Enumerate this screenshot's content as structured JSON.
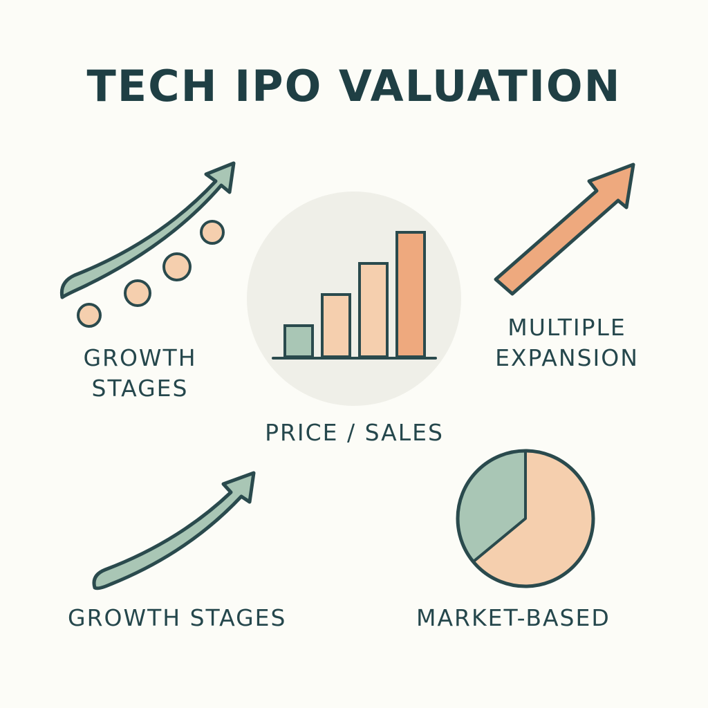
{
  "title": "TECH IPO VALUATION",
  "labels": {
    "growth_stages_top": [
      "GROWTH",
      "STAGES"
    ],
    "multiple_expansion": [
      "MULTIPLE",
      "EXPANSION"
    ],
    "price_sales": "PRICE / SALES",
    "growth_stages_bottom": "GROWTH STAGES",
    "market_based": "MARKET-BASED"
  },
  "colors": {
    "ink": "#2a4a4d",
    "sage": "#a9c6b5",
    "peach": "#f5cfae",
    "orange": "#eea97e",
    "circle_bg": "#efefe8"
  },
  "icons": [
    "growth-arrow-icon",
    "dots-icon",
    "bar-chart-icon",
    "expansion-arrow-icon",
    "pie-chart-icon"
  ],
  "chart_data": [
    {
      "type": "bar",
      "categories": [
        "",
        "",
        "",
        ""
      ],
      "values": [
        1,
        2,
        3,
        4
      ]
    },
    {
      "type": "pie",
      "values": [
        36,
        64
      ]
    }
  ]
}
